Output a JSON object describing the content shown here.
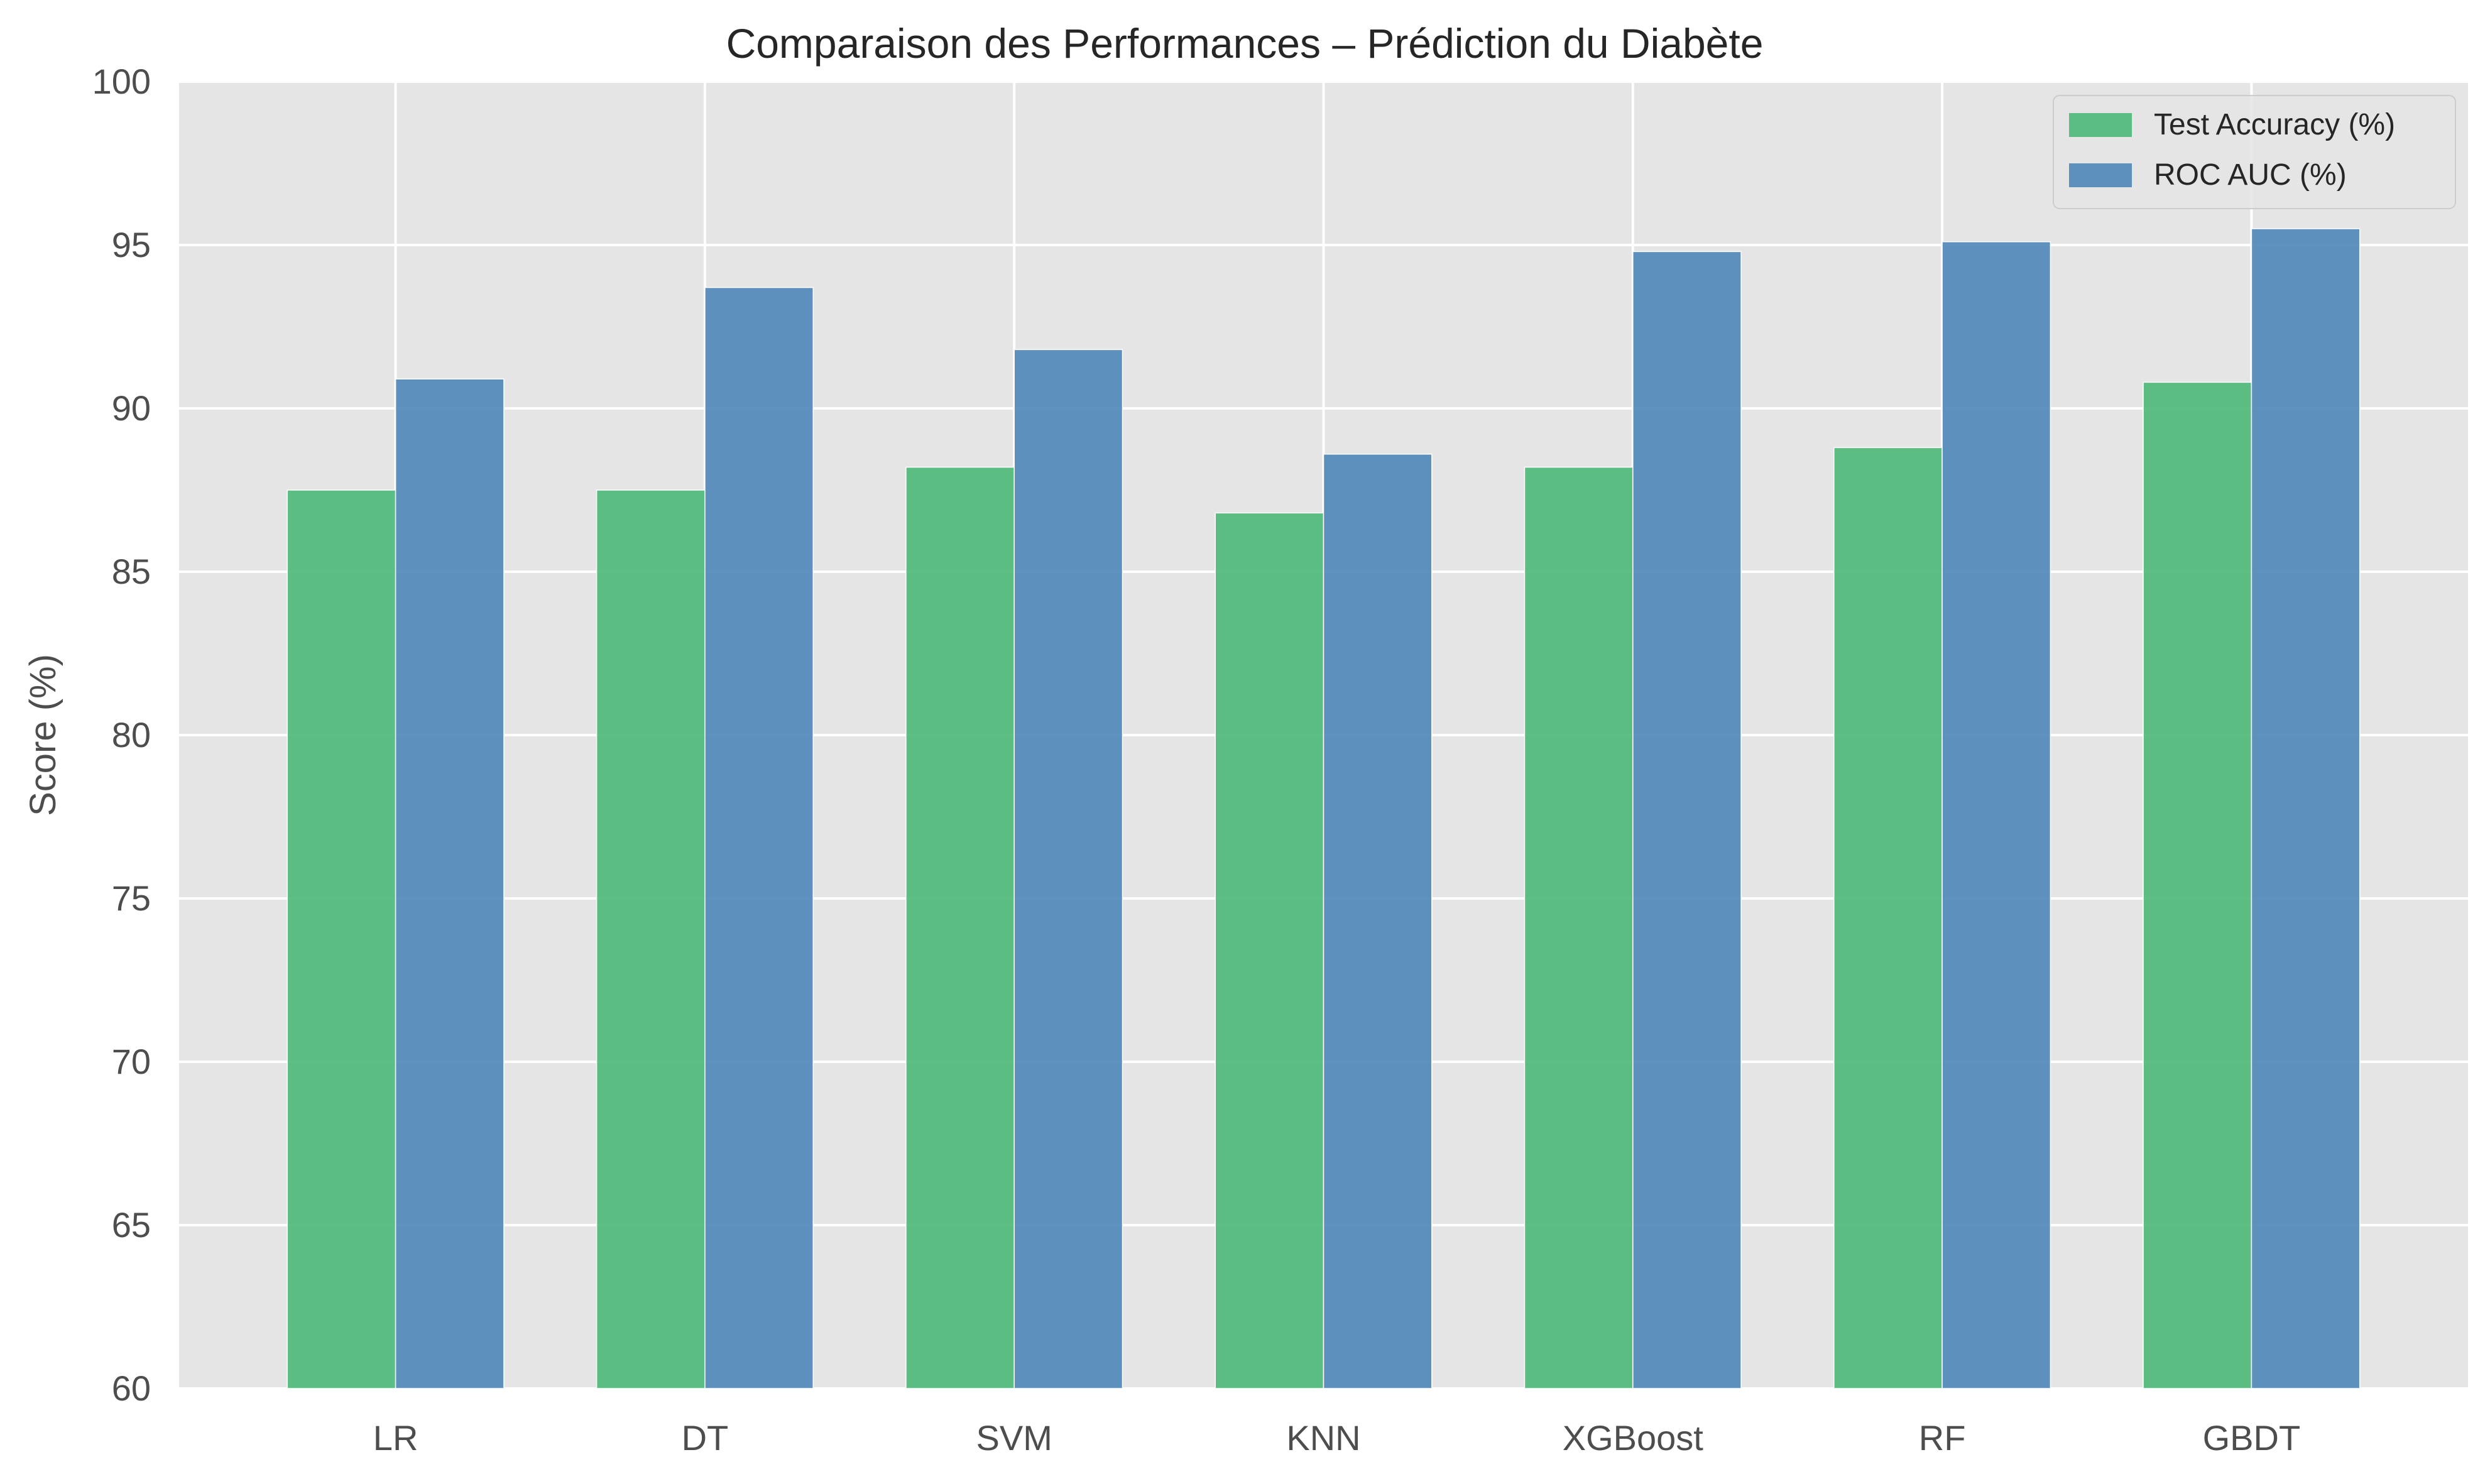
{
  "chart_data": {
    "type": "bar",
    "title": "Comparaison des Performances – Prédiction du Diabète",
    "xlabel": "",
    "ylabel": "Score (%)",
    "ylim": [
      60,
      100
    ],
    "yticks": [
      60,
      65,
      70,
      75,
      80,
      85,
      90,
      95,
      100
    ],
    "categories": [
      "LR",
      "DT",
      "SVM",
      "KNN",
      "XGBoost",
      "RF",
      "GBDT"
    ],
    "series": [
      {
        "name": "Test Accuracy (%)",
        "color": "#4db877",
        "values": [
          87.5,
          87.5,
          88.2,
          86.8,
          88.2,
          88.8,
          90.8
        ]
      },
      {
        "name": "ROC AUC (%)",
        "color": "#4f86b8",
        "values": [
          90.9,
          93.7,
          91.8,
          88.6,
          94.8,
          95.1,
          95.5
        ]
      }
    ],
    "grid": true,
    "legend": "top-right",
    "background": "#e5e5e5"
  }
}
